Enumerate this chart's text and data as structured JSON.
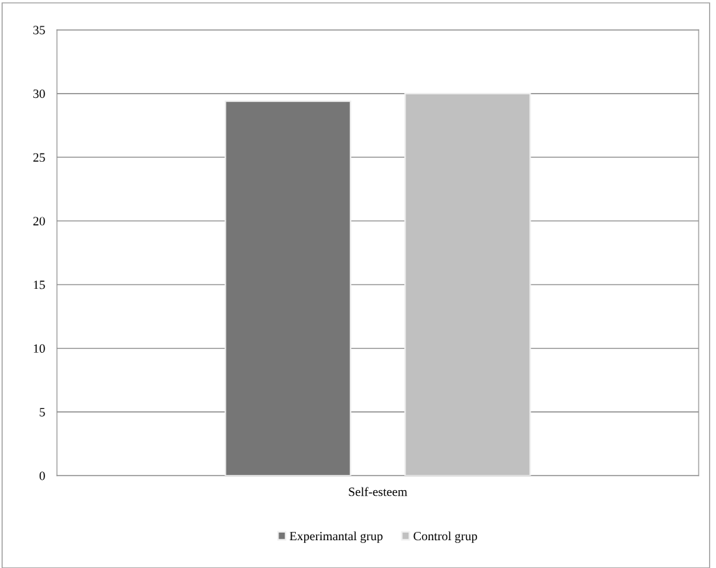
{
  "chart_data": {
    "type": "bar",
    "categories": [
      "Self-esteem"
    ],
    "series": [
      {
        "name": "Experimantal grup",
        "color": "#767676",
        "values": [
          29.4
        ]
      },
      {
        "name": "Control grup",
        "color": "#c0c0c0",
        "values": [
          30
        ]
      }
    ],
    "ylim": [
      0,
      35
    ],
    "yticks": [
      0,
      5,
      10,
      15,
      20,
      25,
      30,
      35
    ],
    "grid": "y",
    "legend": "bottom"
  }
}
